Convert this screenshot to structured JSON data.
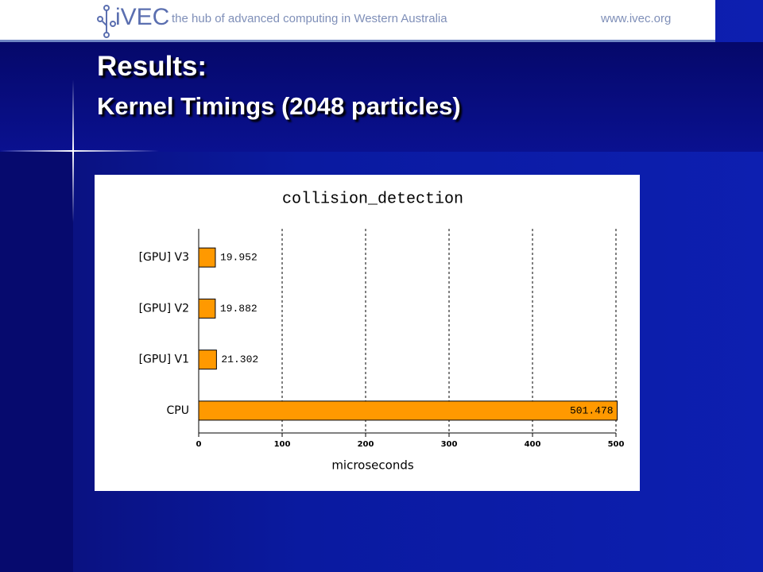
{
  "header": {
    "logo": "iVEC",
    "tagline": "the hub of advanced computing in Western Australia",
    "url": "www.ivec.org"
  },
  "slide": {
    "title": "Results:",
    "subtitle": "Kernel Timings (2048 particles)"
  },
  "chart_data": {
    "type": "hbar",
    "title": "collision_detection",
    "x_label": "microseconds",
    "categories": [
      "[GPU] V3",
      "[GPU] V2",
      "[GPU] V1",
      "CPU"
    ],
    "values": [
      19.952,
      19.882,
      21.302,
      501.478
    ],
    "color": "#ff9900",
    "xlim": [
      0,
      500
    ],
    "xticks": [
      0,
      100,
      200,
      300,
      400,
      500
    ],
    "grid": true
  }
}
